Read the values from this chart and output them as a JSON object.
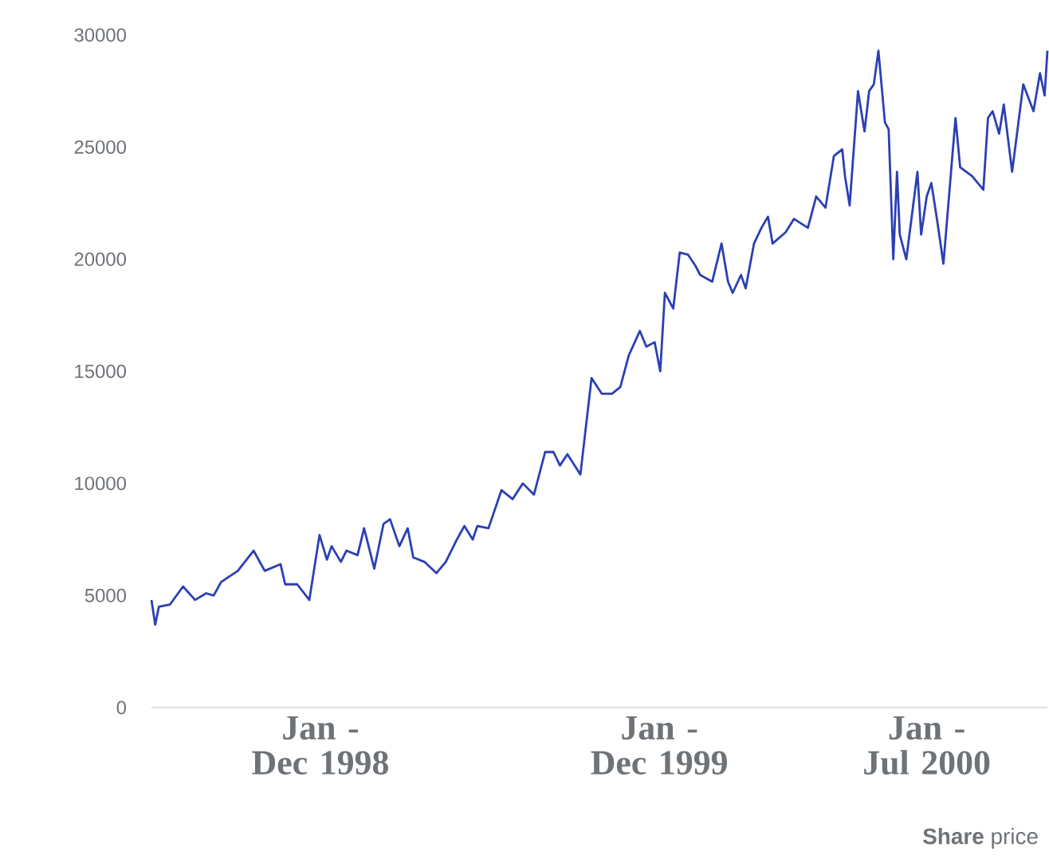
{
  "chart_data": {
    "type": "line",
    "color": "#2b3fb5",
    "xlim": [
      "1998-01-01",
      "2000-08-23"
    ],
    "ylim": [
      0,
      30000
    ],
    "yticks": [
      0,
      5000,
      10000,
      15000,
      20000,
      25000,
      30000
    ],
    "xticks": [
      {
        "value": "1998-07-02",
        "label": "Jan - Dec 1998"
      },
      {
        "value": "1999-07-02",
        "label": "Jan - Dec 1999"
      },
      {
        "value": "2000-04-15",
        "label": "Jan - Jul 2000"
      }
    ],
    "annotations": [
      "**Share** price"
    ],
    "x": [
      "1998-01-01",
      "1998-01-05",
      "1998-01-09",
      "1998-01-21",
      "1998-02-04",
      "1998-02-17",
      "1998-03-01",
      "1998-03-09",
      "1998-03-17",
      "1998-04-04",
      "1998-04-21",
      "1998-05-03",
      "1998-05-20",
      "1998-05-25",
      "1998-06-07",
      "1998-06-20",
      "1998-07-01",
      "1998-07-09",
      "1998-07-14",
      "1998-07-24",
      "1998-07-30",
      "1998-08-11",
      "1998-08-18",
      "1998-08-29",
      "1998-09-08",
      "1998-09-15",
      "1998-09-25",
      "1998-10-04",
      "1998-10-10",
      "1998-10-22",
      "1998-11-04",
      "1998-11-14",
      "1998-11-26",
      "1998-12-04",
      "1998-12-13",
      "1998-12-18",
      "1998-12-30",
      "1999-01-13",
      "1999-01-25",
      "1999-02-05",
      "1999-02-17",
      "1999-03-01",
      "1999-03-10",
      "1999-03-17",
      "1999-03-25",
      "1999-04-08",
      "1999-04-20",
      "1999-05-01",
      "1999-05-12",
      "1999-05-21",
      "1999-05-30",
      "1999-06-11",
      "1999-06-18",
      "1999-06-27",
      "1999-07-03",
      "1999-07-08",
      "1999-07-17",
      "1999-07-24",
      "1999-08-02",
      "1999-08-10",
      "1999-08-15",
      "1999-08-28",
      "1999-09-07",
      "1999-09-14",
      "1999-09-19",
      "1999-09-28",
      "1999-10-03",
      "1999-10-12",
      "1999-10-20",
      "1999-10-27",
      "1999-11-01",
      "1999-11-15",
      "1999-11-24",
      "1999-12-09",
      "1999-12-18",
      "1999-12-28",
      "2000-01-06",
      "2000-01-15",
      "2000-01-18",
      "2000-01-23",
      "2000-02-01",
      "2000-02-08",
      "2000-02-13",
      "2000-02-18",
      "2000-02-23",
      "2000-03-01",
      "2000-03-05",
      "2000-03-10",
      "2000-03-14",
      "2000-03-17",
      "2000-03-24",
      "2000-04-05",
      "2000-04-09",
      "2000-04-15",
      "2000-04-20",
      "2000-04-26",
      "2000-05-03",
      "2000-05-16",
      "2000-05-21",
      "2000-06-03",
      "2000-06-15",
      "2000-06-20",
      "2000-06-25",
      "2000-07-02",
      "2000-07-07",
      "2000-07-16",
      "2000-07-28",
      "2000-08-08",
      "2000-08-15",
      "2000-08-20",
      "2000-08-23"
    ],
    "values": [
      4800,
      3700,
      4500,
      4600,
      5400,
      4800,
      5100,
      5000,
      5600,
      6100,
      7000,
      6100,
      6400,
      5500,
      5500,
      4800,
      7700,
      6600,
      7200,
      6500,
      7000,
      6800,
      8000,
      6200,
      8200,
      8400,
      7200,
      8000,
      6700,
      6500,
      6000,
      6500,
      7500,
      8100,
      7500,
      8100,
      8000,
      9700,
      9300,
      10000,
      9500,
      11400,
      11400,
      10800,
      11300,
      10400,
      14700,
      14000,
      14000,
      14300,
      15700,
      16800,
      16100,
      16300,
      15000,
      18500,
      17800,
      20300,
      20200,
      19700,
      19300,
      19000,
      20700,
      19000,
      18500,
      19300,
      18700,
      20700,
      21400,
      21900,
      20700,
      21200,
      21800,
      21400,
      22800,
      22300,
      24600,
      24900,
      23700,
      22400,
      27500,
      25700,
      27500,
      27800,
      29300,
      26100,
      25800,
      20000,
      23900,
      21100,
      20000,
      23900,
      21100,
      22800,
      23400,
      21800,
      19800,
      26300,
      24100,
      23700,
      23100,
      26300,
      26600,
      25600,
      26900,
      23900,
      27800,
      26600,
      28300,
      27300,
      29300
    ]
  }
}
